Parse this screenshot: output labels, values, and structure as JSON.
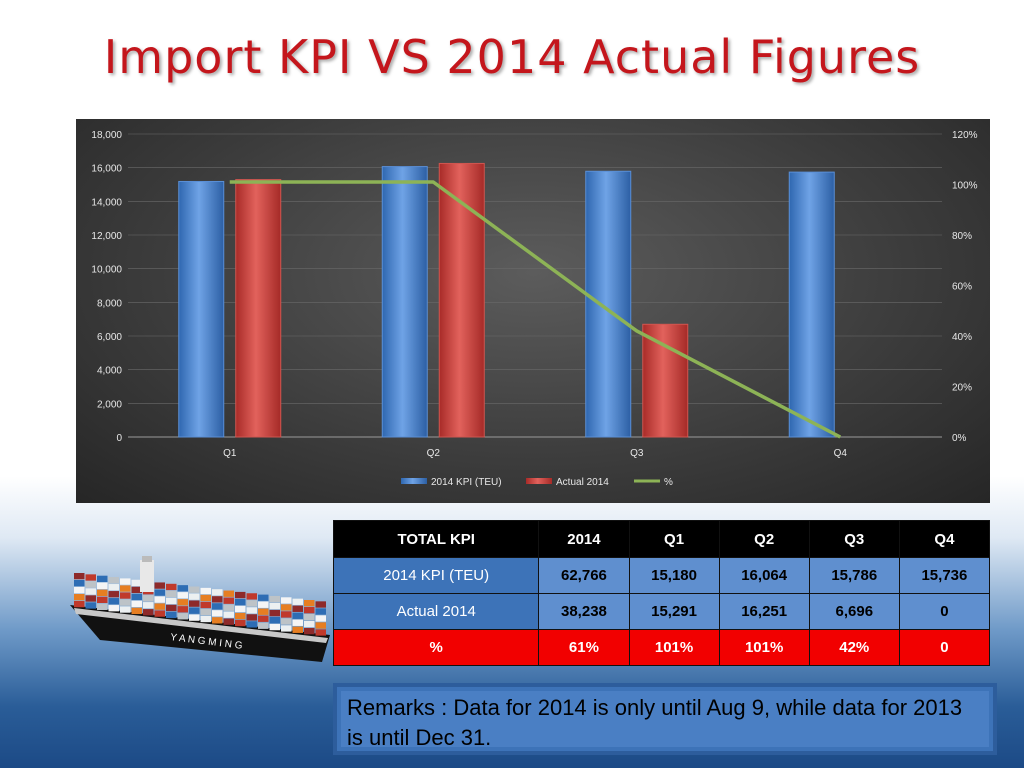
{
  "slide": {
    "title": "Import KPI VS 2014 Actual Figures"
  },
  "chart_data": {
    "type": "bar",
    "categories": [
      "Q1",
      "Q2",
      "Q3",
      "Q4"
    ],
    "series": [
      {
        "name": "2014 KPI (TEU)",
        "type": "bar",
        "axis": "left",
        "color": "#4a86d0",
        "values": [
          15180,
          16064,
          15786,
          15736
        ]
      },
      {
        "name": "Actual 2014",
        "type": "bar",
        "axis": "left",
        "color": "#c9423e",
        "values": [
          15291,
          16251,
          6696,
          0
        ]
      },
      {
        "name": "%",
        "type": "line",
        "axis": "right",
        "color": "#8db356",
        "values": [
          101,
          101,
          42,
          0
        ]
      }
    ],
    "y_left": {
      "min": 0,
      "max": 18000,
      "step": 2000,
      "ticks": [
        "0",
        "2,000",
        "4,000",
        "6,000",
        "8,000",
        "10,000",
        "12,000",
        "14,000",
        "16,000",
        "18,000"
      ]
    },
    "y_right": {
      "min": 0,
      "max": 120,
      "step": 20,
      "ticks": [
        "0%",
        "20%",
        "40%",
        "60%",
        "80%",
        "100%",
        "120%"
      ]
    },
    "grid": true,
    "legend_position": "bottom"
  },
  "table": {
    "headers": [
      "TOTAL KPI",
      "2014",
      "Q1",
      "Q2",
      "Q3",
      "Q4"
    ],
    "rows": [
      {
        "label": "2014 KPI (TEU)",
        "cells": [
          "62,766",
          "15,180",
          "16,064",
          "15,786",
          "15,736"
        ]
      },
      {
        "label": "Actual 2014",
        "cells": [
          "38,238",
          "15,291",
          "16,251",
          "6,696",
          "0"
        ]
      },
      {
        "label": "%",
        "cells": [
          "61%",
          "101%",
          "101%",
          "42%",
          "0"
        ]
      }
    ]
  },
  "remarks": {
    "text": "Remarks : Data for 2014 is only until Aug 9, while data for 2013 is until Dec 31."
  },
  "ship": {
    "hull_text": "Y A N G   M I N G"
  }
}
